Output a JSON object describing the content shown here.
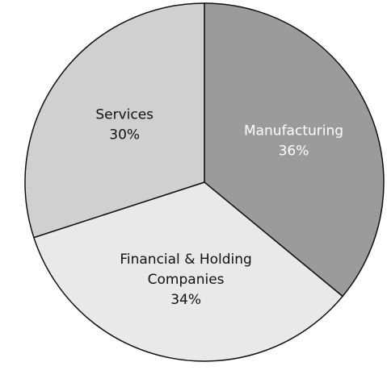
{
  "chart_data": {
    "type": "pie",
    "title": "",
    "start_angle_deg": 90,
    "direction": "clockwise",
    "slices": [
      {
        "label_lines": [
          "Manufacturing"
        ],
        "pct_label": "36%",
        "value": 36,
        "color": "#9b9b9b"
      },
      {
        "label_lines": [
          "Financial & Holding",
          "Companies"
        ],
        "pct_label": "34%",
        "value": 34,
        "color": "#e9e9e9"
      },
      {
        "label_lines": [
          "Services"
        ],
        "pct_label": "30%",
        "value": 30,
        "color": "#d0d0d0"
      }
    ],
    "stroke_color": "#111111",
    "legend": "none"
  }
}
